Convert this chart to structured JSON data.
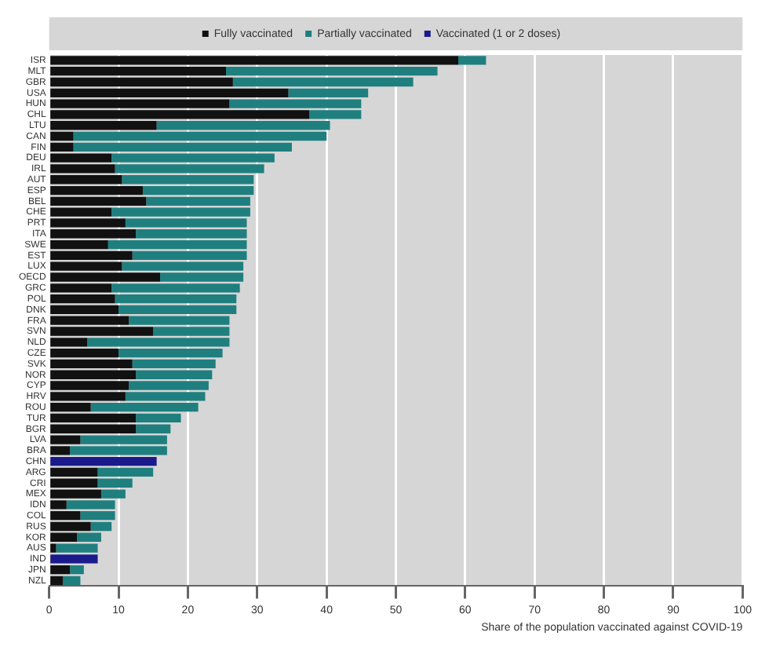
{
  "chart_data": {
    "type": "bar",
    "orientation": "horizontal",
    "stacked": true,
    "xlabel": "Share of the population vaccinated against COVID-19",
    "categories": [
      "ISR",
      "MLT",
      "GBR",
      "USA",
      "HUN",
      "CHL",
      "LTU",
      "CAN",
      "FIN",
      "DEU",
      "IRL",
      "AUT",
      "ESP",
      "BEL",
      "CHE",
      "PRT",
      "ITA",
      "SWE",
      "EST",
      "LUX",
      "OECD",
      "GRC",
      "POL",
      "DNK",
      "FRA",
      "SVN",
      "NLD",
      "CZE",
      "SVK",
      "NOR",
      "CYP",
      "HRV",
      "ROU",
      "TUR",
      "BGR",
      "LVA",
      "BRA",
      "CHN",
      "ARG",
      "CRI",
      "MEX",
      "IDN",
      "COL",
      "RUS",
      "KOR",
      "AUS",
      "IND",
      "JPN",
      "NZL"
    ],
    "series": [
      {
        "name": "Fully vaccinated",
        "color": "#111111",
        "values": [
          59,
          25.5,
          26.5,
          34.5,
          26,
          37.5,
          15.5,
          3.5,
          3.5,
          9,
          9.5,
          10.5,
          13.5,
          14,
          9,
          11,
          12.5,
          8.5,
          12,
          10.5,
          16,
          9,
          9.5,
          10,
          11.5,
          15,
          5.5,
          10,
          12,
          12.5,
          11.5,
          11,
          6,
          12.5,
          12.5,
          4.5,
          3,
          null,
          7,
          7,
          7.5,
          2.5,
          4.5,
          6,
          4,
          1,
          null,
          3,
          2
        ]
      },
      {
        "name": "Partially vaccinated",
        "color": "#1f7f7f",
        "values": [
          4,
          30.5,
          26,
          11.5,
          19,
          7.5,
          25,
          36.5,
          31.5,
          23.5,
          21.5,
          19,
          16,
          15,
          20,
          17.5,
          16,
          20,
          16.5,
          17.5,
          12,
          18.5,
          17.5,
          17,
          14.5,
          11,
          20.5,
          15,
          12,
          11,
          11.5,
          11.5,
          15.5,
          6.5,
          5,
          12.5,
          14,
          null,
          8,
          5,
          3.5,
          7,
          5,
          3,
          3.5,
          6,
          null,
          2,
          2.5
        ]
      },
      {
        "name": "Vaccinated (1 or 2 doses)",
        "color": "#1a1a8c",
        "values": [
          null,
          null,
          null,
          null,
          null,
          null,
          null,
          null,
          null,
          null,
          null,
          null,
          null,
          null,
          null,
          null,
          null,
          null,
          null,
          null,
          null,
          null,
          null,
          null,
          null,
          null,
          null,
          null,
          null,
          null,
          null,
          null,
          null,
          null,
          null,
          null,
          null,
          15.5,
          null,
          null,
          null,
          null,
          null,
          null,
          null,
          null,
          7,
          null,
          null
        ]
      }
    ],
    "xlim": [
      0,
      100
    ],
    "xticks": [
      0,
      10,
      20,
      30,
      40,
      50,
      60,
      70,
      80,
      90,
      100
    ],
    "grid": "x",
    "legend": "top"
  }
}
